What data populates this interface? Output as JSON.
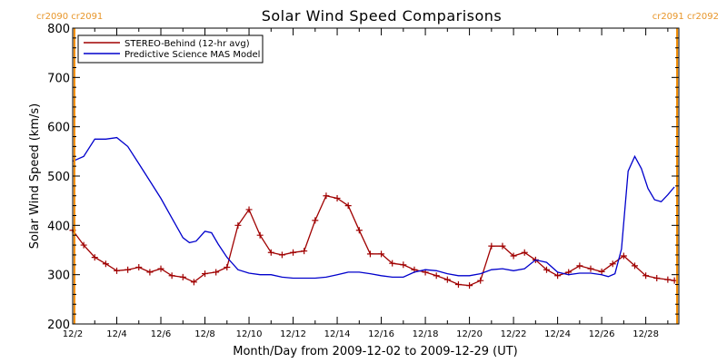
{
  "chart_data": {
    "type": "line",
    "title": "Solar Wind Speed Comparisons",
    "xlabel": "Month/Day from 2009-12-02 to 2009-12-29 (UT)",
    "ylabel": "Solar Wind Speed (km/s)",
    "ylim": [
      200,
      800
    ],
    "yticks": [
      200,
      300,
      400,
      500,
      600,
      700,
      800
    ],
    "xlim": [
      2.0,
      29.5
    ],
    "xticks": [
      2,
      4,
      6,
      8,
      10,
      12,
      14,
      16,
      18,
      20,
      22,
      24,
      26,
      28
    ],
    "xtick_labels": [
      "12/2",
      "12/4",
      "12/6",
      "12/8",
      "12/10",
      "12/12",
      "12/14",
      "12/16",
      "12/18",
      "12/20",
      "12/22",
      "12/24",
      "12/26",
      "12/28"
    ],
    "grid": false,
    "legend": "top-left",
    "carrington_markers": [
      {
        "x": 2.08,
        "label": "cr2090 cr2091",
        "label_anchor": "start",
        "color": "#f28c00"
      },
      {
        "x": 29.42,
        "label": "cr2091 cr2092",
        "label_anchor": "end",
        "color": "#f28c00"
      }
    ],
    "series": [
      {
        "name": "STEREO-Behind (12-hr avg)",
        "color": "#a00000",
        "marker": "plus",
        "x": [
          2.0,
          2.5,
          3.0,
          3.5,
          4.0,
          4.5,
          5.0,
          5.5,
          6.0,
          6.5,
          7.0,
          7.5,
          8.0,
          8.5,
          9.0,
          9.5,
          10.0,
          10.5,
          11.0,
          11.5,
          12.0,
          12.5,
          13.0,
          13.5,
          14.0,
          14.5,
          15.0,
          15.5,
          16.0,
          16.5,
          17.0,
          17.5,
          18.0,
          18.5,
          19.0,
          19.5,
          20.0,
          20.5,
          21.0,
          21.5,
          22.0,
          22.5,
          23.0,
          23.5,
          24.0,
          24.5,
          25.0,
          25.5,
          26.0,
          26.5,
          27.0,
          27.5,
          28.0,
          28.5,
          29.0,
          29.3
        ],
        "values": [
          390,
          360,
          335,
          322,
          308,
          310,
          315,
          305,
          312,
          298,
          295,
          285,
          302,
          305,
          315,
          400,
          432,
          380,
          345,
          340,
          345,
          348,
          410,
          460,
          455,
          440,
          390,
          342,
          342,
          323,
          320,
          310,
          305,
          298,
          290,
          280,
          278,
          288,
          358,
          358,
          338,
          345,
          330,
          310,
          298,
          305,
          318,
          312,
          306,
          322,
          338,
          318,
          298,
          293,
          290,
          288
        ]
      },
      {
        "name": "Predictive Science MAS Model",
        "color": "#0000cc",
        "marker": "none",
        "x": [
          2.0,
          2.5,
          3.0,
          3.5,
          4.0,
          4.5,
          5.0,
          5.5,
          6.0,
          6.5,
          7.0,
          7.3,
          7.6,
          8.0,
          8.3,
          8.6,
          9.0,
          9.5,
          10.0,
          10.5,
          11.0,
          11.5,
          12.0,
          13.0,
          13.5,
          14.0,
          14.5,
          15.0,
          15.5,
          16.0,
          16.5,
          17.0,
          17.5,
          18.0,
          18.5,
          19.0,
          19.5,
          20.0,
          20.5,
          21.0,
          21.5,
          22.0,
          22.5,
          23.0,
          23.5,
          24.0,
          24.5,
          25.0,
          25.5,
          26.0,
          26.3,
          26.6,
          26.9,
          27.2,
          27.5,
          27.8,
          28.1,
          28.4,
          28.7,
          29.0,
          29.3
        ],
        "values": [
          530,
          540,
          575,
          575,
          578,
          560,
          525,
          490,
          455,
          415,
          375,
          365,
          368,
          388,
          385,
          362,
          335,
          310,
          303,
          300,
          300,
          295,
          293,
          293,
          295,
          300,
          305,
          305,
          302,
          298,
          295,
          295,
          305,
          310,
          308,
          302,
          298,
          298,
          302,
          310,
          312,
          308,
          312,
          330,
          325,
          305,
          300,
          303,
          303,
          300,
          296,
          302,
          352,
          510,
          540,
          515,
          475,
          452,
          448,
          462,
          478
        ]
      }
    ]
  }
}
